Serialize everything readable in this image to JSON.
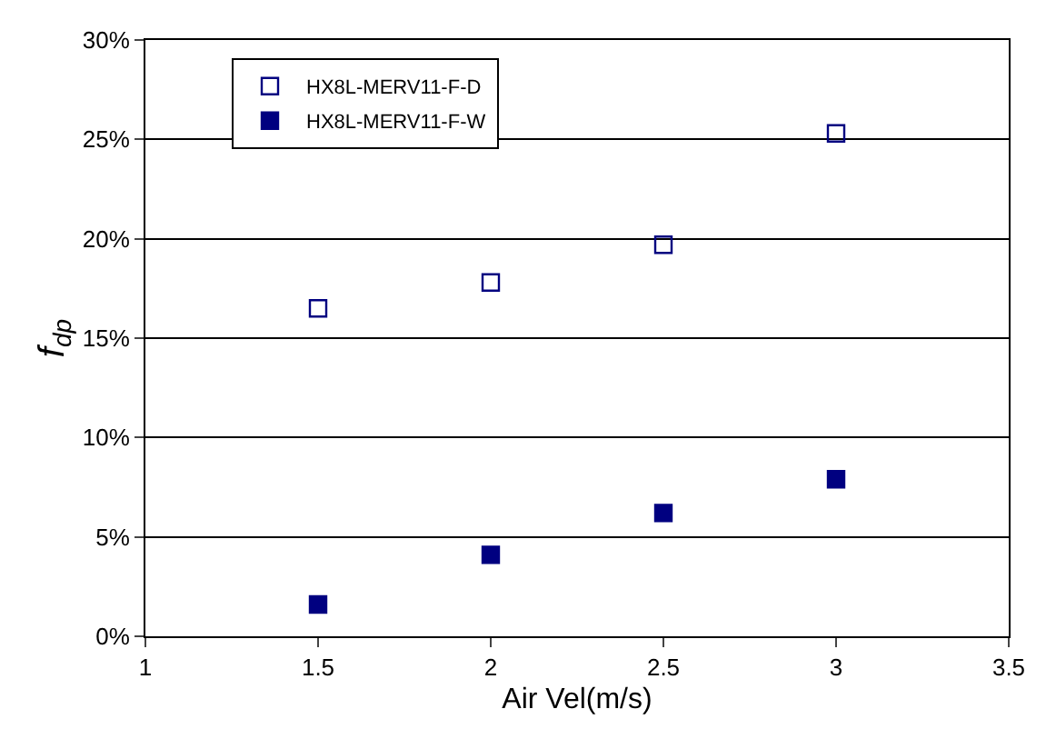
{
  "chart_data": {
    "type": "scatter",
    "xlabel": "Air Vel(m/s)",
    "ylabel": "f$_{dp}$",
    "x": [
      1.5,
      2,
      2.5,
      3
    ],
    "series": [
      {
        "name": "HX8L-MERV11-F-D",
        "color": "#000080",
        "values": [
          16.5,
          17.8,
          19.7,
          25.3
        ]
      },
      {
        "name": "HX8L-MERV11-F-W",
        "color": "#000080",
        "values": [
          1.6,
          4.1,
          6.2,
          7.9
        ]
      }
    ],
    "xlim": [
      1,
      3.5
    ],
    "xticks": [
      1,
      1.5,
      2,
      2.5,
      3,
      3.5
    ],
    "ylim": [
      0,
      30
    ],
    "yticks": [
      {
        "value": 0,
        "label": "0%"
      },
      {
        "value": 5,
        "label": "5%"
      },
      {
        "value": 10,
        "label": "10%"
      },
      {
        "value": 15,
        "label": "15%"
      },
      {
        "value": 20,
        "label": "20%"
      },
      {
        "value": 25,
        "label": "25%"
      },
      {
        "value": 30,
        "label": "30%"
      }
    ],
    "grid": "y",
    "legend": "top left",
    "marker": "square"
  }
}
